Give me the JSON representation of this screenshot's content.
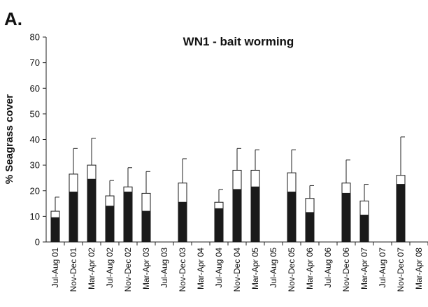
{
  "panel_label": "A.",
  "chart_data": {
    "type": "bar",
    "title": "WN1 - bait worming",
    "xlabel": "",
    "ylabel": "% Seagrass cover",
    "ylim": [
      0,
      80
    ],
    "yticks": [
      0,
      10,
      20,
      30,
      40,
      50,
      60,
      70,
      80
    ],
    "stacked": true,
    "grid": false,
    "categories": [
      "Jul-Aug 01",
      "Nov-Dec 01",
      "Mar-Apr 02",
      "Jul-Aug 02",
      "Nov-Dec 02",
      "Mar-Apr 03",
      "Jul-Aug 03",
      "Nov-Dec 03",
      "Mar-Apr 04",
      "Jul-Aug 04",
      "Nov-Dec 04",
      "Mar-Apr 05",
      "Jul-Aug 05",
      "Nov-Dec 05",
      "Mar-Apr 06",
      "Jul-Aug 06",
      "Nov-Dec 06",
      "Mar-Apr 07",
      "Jul-Aug 07",
      "Nov-Dec 07",
      "Mar-Apr 08"
    ],
    "series": [
      {
        "color": "#1a1a1a",
        "values": [
          9.5,
          19.5,
          24.5,
          14,
          19.5,
          12,
          null,
          15.5,
          null,
          13,
          20.5,
          21.5,
          null,
          19.5,
          11.5,
          null,
          19,
          10.5,
          null,
          22.5,
          null
        ]
      },
      {
        "color": "#ffffff",
        "values": [
          2.5,
          7,
          5.5,
          4,
          2,
          7,
          null,
          7.5,
          null,
          2.5,
          7.5,
          6.5,
          null,
          7.5,
          5.5,
          null,
          4,
          5.5,
          null,
          3.5,
          null
        ]
      }
    ],
    "error_upper": [
      17.5,
      36.5,
      40.5,
      24,
      29,
      27.5,
      null,
      32.5,
      null,
      20.5,
      36.5,
      36,
      null,
      36,
      22,
      null,
      32,
      22.5,
      null,
      41,
      null
    ]
  }
}
